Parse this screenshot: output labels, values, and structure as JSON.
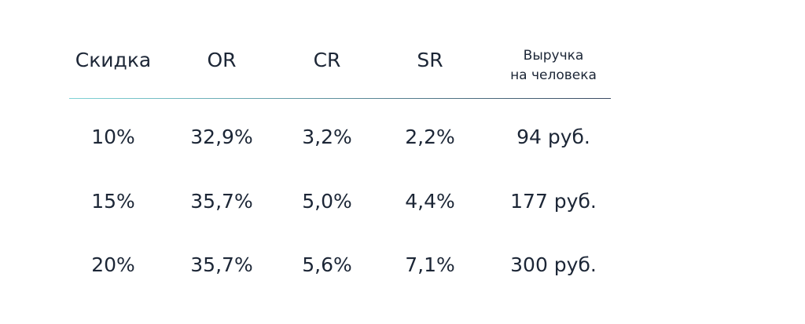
{
  "table": {
    "headers": [
      "Скидка",
      "OR",
      "CR",
      "SR",
      [
        "Выручка",
        "на человека"
      ]
    ],
    "rows": [
      [
        "10%",
        "32,9%",
        "3,2%",
        "2,2%",
        "94 руб."
      ],
      [
        "15%",
        "35,7%",
        "5,0%",
        "4,4%",
        "177 руб."
      ],
      [
        "20%",
        "35,7%",
        "5,6%",
        "7,1%",
        "300 руб."
      ]
    ]
  }
}
